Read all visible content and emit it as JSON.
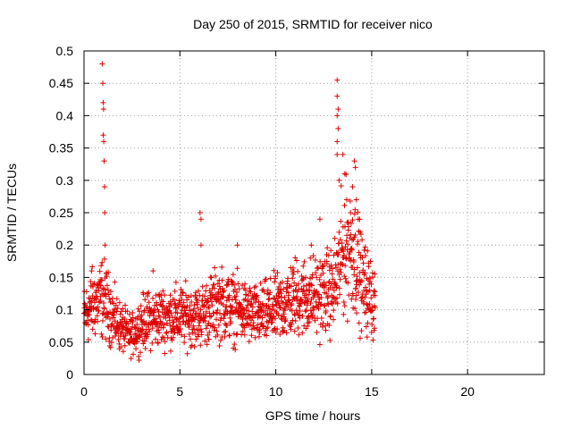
{
  "chart_data": {
    "type": "scatter",
    "title": "Day 250 of 2015, SRMTID for receiver nico",
    "xlabel": "GPS time / hours",
    "ylabel": "SRMTID / TECUs",
    "xlim": [
      0,
      24
    ],
    "ylim": [
      0,
      0.5
    ],
    "x_ticks": [
      "0",
      "5",
      "10",
      "15",
      "20"
    ],
    "y_ticks": [
      "0",
      "0.05",
      "0.1",
      "0.15",
      "0.2",
      "0.25",
      "0.3",
      "0.35",
      "0.4",
      "0.45",
      "0.5"
    ],
    "grid": true,
    "marker": "+",
    "color": "#e00000",
    "time_range_hours": [
      0,
      15.2
    ],
    "baseline_profile": [
      {
        "x": 0.0,
        "y": 0.09
      },
      {
        "x": 0.5,
        "y": 0.11
      },
      {
        "x": 1.0,
        "y": 0.12
      },
      {
        "x": 1.5,
        "y": 0.09
      },
      {
        "x": 2.0,
        "y": 0.07
      },
      {
        "x": 2.5,
        "y": 0.06
      },
      {
        "x": 3.0,
        "y": 0.08
      },
      {
        "x": 4.0,
        "y": 0.09
      },
      {
        "x": 5.0,
        "y": 0.09
      },
      {
        "x": 6.0,
        "y": 0.09
      },
      {
        "x": 7.0,
        "y": 0.11
      },
      {
        "x": 8.0,
        "y": 0.1
      },
      {
        "x": 9.0,
        "y": 0.09
      },
      {
        "x": 10.0,
        "y": 0.1
      },
      {
        "x": 11.0,
        "y": 0.12
      },
      {
        "x": 12.0,
        "y": 0.12
      },
      {
        "x": 13.0,
        "y": 0.13
      },
      {
        "x": 13.5,
        "y": 0.19
      },
      {
        "x": 14.0,
        "y": 0.2
      },
      {
        "x": 14.5,
        "y": 0.14
      },
      {
        "x": 15.2,
        "y": 0.11
      }
    ],
    "spikes": [
      {
        "x": 0.95,
        "y": 0.48
      },
      {
        "x": 0.98,
        "y": 0.45
      },
      {
        "x": 1.0,
        "y": 0.42
      },
      {
        "x": 1.02,
        "y": 0.41
      },
      {
        "x": 1.0,
        "y": 0.37
      },
      {
        "x": 1.03,
        "y": 0.36
      },
      {
        "x": 1.05,
        "y": 0.33
      },
      {
        "x": 1.07,
        "y": 0.29
      },
      {
        "x": 1.08,
        "y": 0.25
      },
      {
        "x": 1.1,
        "y": 0.2
      },
      {
        "x": 6.05,
        "y": 0.25
      },
      {
        "x": 6.1,
        "y": 0.24
      },
      {
        "x": 6.1,
        "y": 0.2
      },
      {
        "x": 13.2,
        "y": 0.455
      },
      {
        "x": 13.2,
        "y": 0.43
      },
      {
        "x": 13.25,
        "y": 0.41
      },
      {
        "x": 13.2,
        "y": 0.4
      },
      {
        "x": 13.25,
        "y": 0.38
      },
      {
        "x": 13.2,
        "y": 0.36
      },
      {
        "x": 13.2,
        "y": 0.34
      },
      {
        "x": 13.5,
        "y": 0.34
      },
      {
        "x": 13.3,
        "y": 0.3
      },
      {
        "x": 13.6,
        "y": 0.31
      },
      {
        "x": 14.1,
        "y": 0.33
      },
      {
        "x": 14.15,
        "y": 0.32
      },
      {
        "x": 14.0,
        "y": 0.29
      },
      {
        "x": 14.2,
        "y": 0.27
      },
      {
        "x": 13.7,
        "y": 0.27
      },
      {
        "x": 13.9,
        "y": 0.25
      },
      {
        "x": 14.3,
        "y": 0.24
      },
      {
        "x": 14.4,
        "y": 0.22
      },
      {
        "x": 12.3,
        "y": 0.24
      },
      {
        "x": 11.85,
        "y": 0.2
      },
      {
        "x": 8.0,
        "y": 0.2
      },
      {
        "x": 3.6,
        "y": 0.16
      },
      {
        "x": 0.4,
        "y": 0.16
      }
    ]
  }
}
